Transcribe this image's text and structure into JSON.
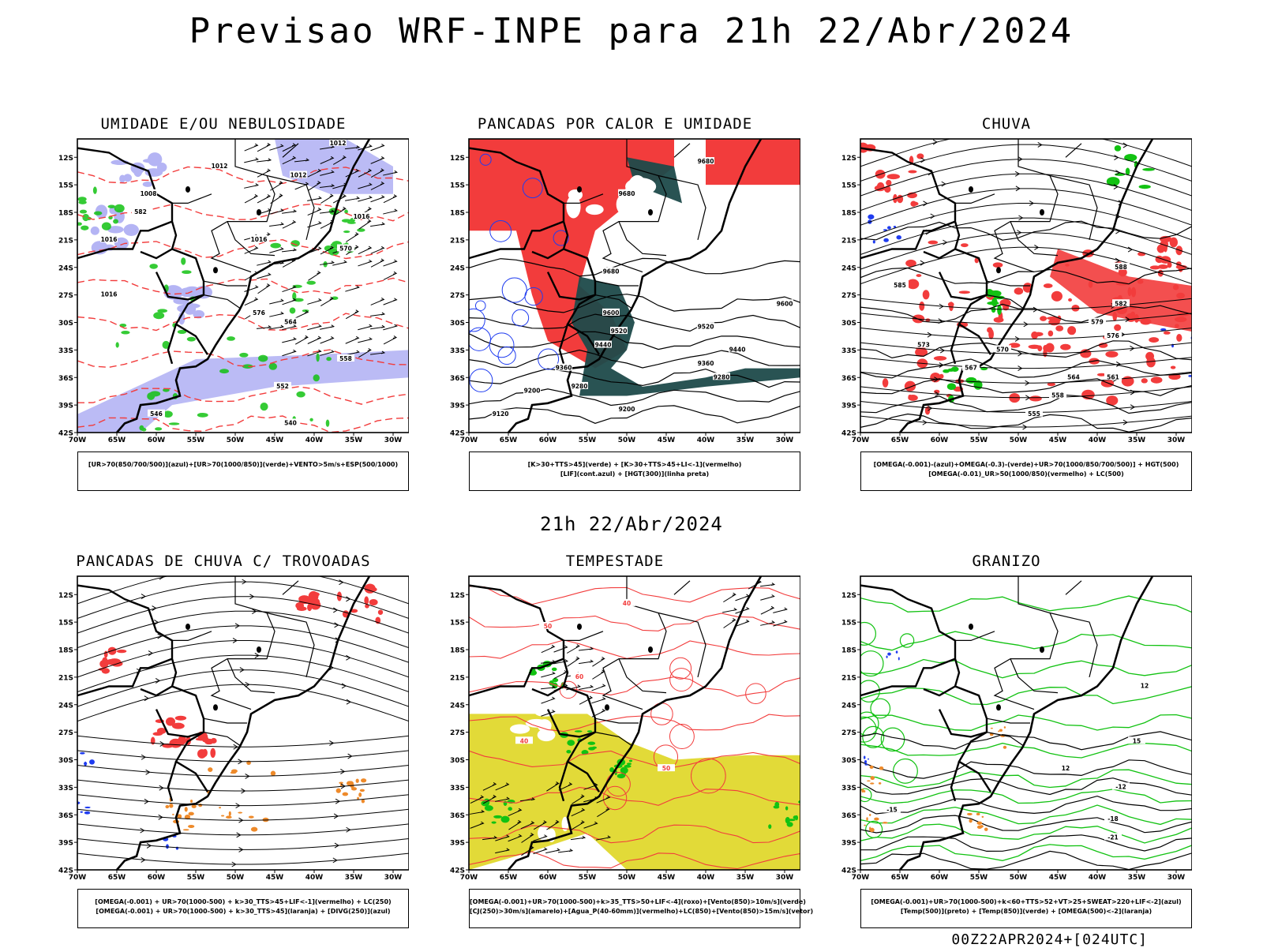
{
  "header": {
    "title": "Previsao WRF-INPE  para 21h 22/Abr/2024",
    "subtitle": "21h 22/Abr/2024",
    "footer": "00Z22APR2024+[024UTC]"
  },
  "axes": {
    "lat_labels": [
      "12S",
      "15S",
      "18S",
      "21S",
      "24S",
      "27S",
      "30S",
      "33S",
      "36S",
      "39S",
      "42S"
    ],
    "lon_labels": [
      "70W",
      "65W",
      "60W",
      "55W",
      "50W",
      "45W",
      "40W",
      "35W",
      "30W"
    ]
  },
  "colors": {
    "blue": "#1f3cf0",
    "green": "#12c212",
    "red": "#f23c3c",
    "lavender": "#b4b4f4",
    "orange": "#ee8a2a",
    "yellow": "#e2da38",
    "darkteal": "#1d4a4a",
    "black": "#000000"
  },
  "panels": [
    {
      "id": "umidade",
      "title": "UMIDADE E/OU NEBULOSIDADE",
      "legend": [
        "[UR>70(850/700/500)](azul)+[UR>70(1000/850)](verde)+VENTO>5m/s+ESP(500/1000)"
      ],
      "contour_labels": [
        "1012",
        "1012",
        "1008",
        "1016",
        "1016",
        "1016",
        "1016",
        "1012",
        "576",
        "570",
        "582",
        "564",
        "558",
        "552",
        "546",
        "540"
      ]
    },
    {
      "id": "pancadas-calor",
      "title": "PANCADAS POR CALOR E UMIDADE",
      "legend": [
        "[K>30+TTS>45](verde) + [K>30+TTS>45+LI<-1](vermelho)",
        "[LIF](cont.azul) + [HGT(300)](linha preta)"
      ],
      "contour_labels": [
        "9680",
        "9680",
        "9680",
        "9600",
        "9600",
        "9520",
        "9520",
        "9440",
        "9440",
        "9360",
        "9360",
        "9280",
        "9280",
        "9200",
        "9200",
        "9120"
      ]
    },
    {
      "id": "chuva",
      "title": "CHUVA",
      "legend": [
        "[OMEGA(-0.001)-(azul)+OMEGA(-0.3)-(verde)+UR>70(1000/850/700/500)] + HGT(500)",
        "[OMEGA(-0.01)_UR>50(1000/850)(vermelho) + LC(500)"
      ],
      "contour_labels": [
        "588",
        "585",
        "582",
        "579",
        "576",
        "573",
        "570",
        "567",
        "564",
        "561",
        "558",
        "555"
      ]
    },
    {
      "id": "pancadas-trovoadas",
      "title": "PANCADAS DE CHUVA C/ TROVOADAS",
      "legend": [
        "[OMEGA(-0.001) + UR>70(1000-500) + k>30_TTS>45+LIF<-1](vermelho) + LC(250)",
        "[OMEGA(-0.001) + UR>70(1000-500) + k>30_TTS>45](laranja) + [DIVG(250)](azul)"
      ],
      "contour_labels": []
    },
    {
      "id": "tempestade",
      "title": "TEMPESTADE",
      "legend": [
        "[OMEGA(-0.001)+UR>70(1000-500)+k>35_TTS>50+LIF<-4](roxo)+[Vento(850)>10m/s](verde)",
        "[CJ(250)>30m/s](amarelo)+[Agua_P(40-60mm)](vermelho)+LC(850)+[Vento(850)>15m/s](vetor)"
      ],
      "contour_labels": [
        "40",
        "50",
        "60",
        "40",
        "50"
      ]
    },
    {
      "id": "granizo",
      "title": "GRANIZO",
      "legend": [
        "[OMEGA(-0.001)+UR>70(1000-500)+k<60+TTS>52+VT>25+SWEAT>220+LIF<-2](azul)",
        "[Temp(500)](preto) + [Temp(850)](verde) + [OMEGA(500)<-2](laranja)"
      ],
      "contour_labels": [
        "-12",
        "-15",
        "-18",
        "-21",
        "12",
        "15",
        "12"
      ]
    }
  ]
}
